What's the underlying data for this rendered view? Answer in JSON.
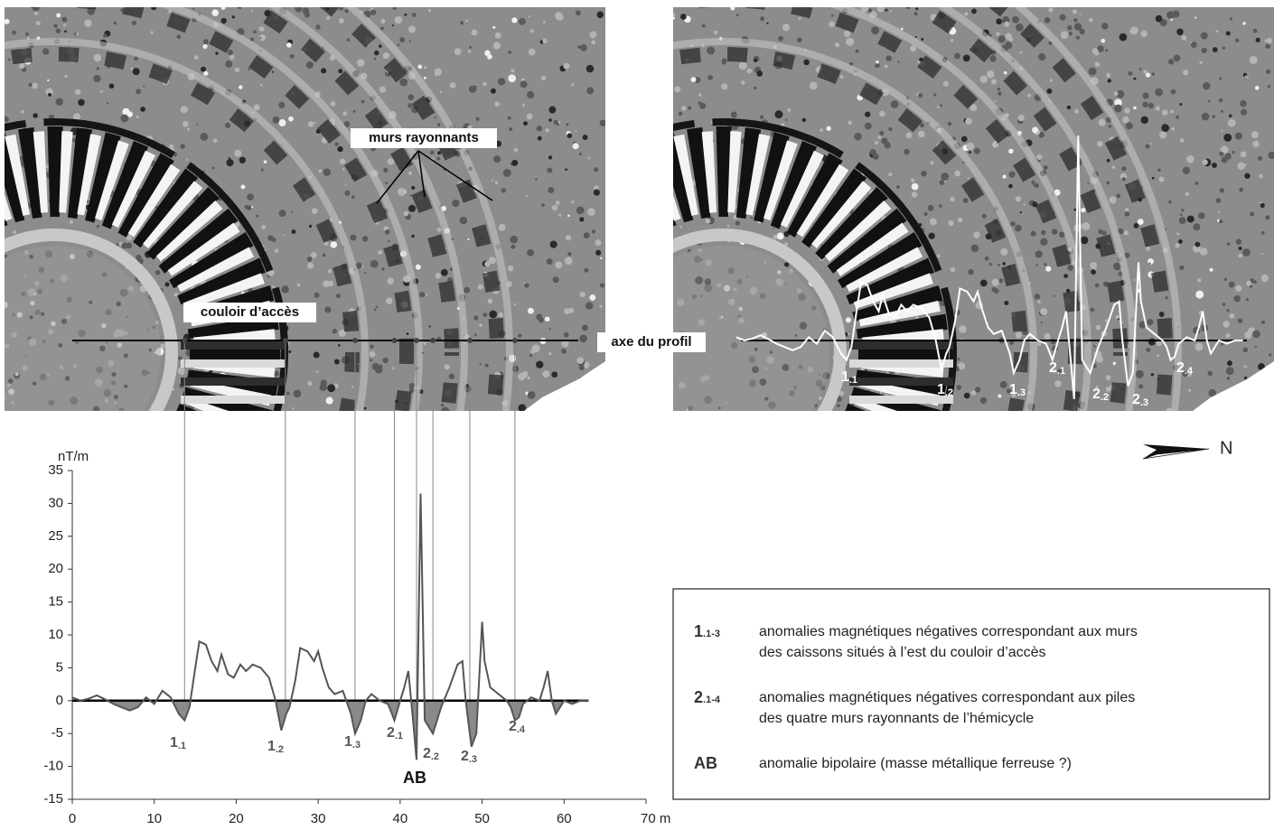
{
  "chart_data": {
    "type": "line",
    "y_unit": "nT/m",
    "xlim": [
      0,
      70
    ],
    "xticks": [
      0,
      10,
      20,
      30,
      40,
      50,
      60,
      {
        "value": 70,
        "label": "70 m"
      }
    ],
    "ylim": [
      -15,
      35
    ],
    "yticks": [
      -15,
      -10,
      -5,
      0,
      5,
      10,
      15,
      20,
      25,
      30,
      35
    ],
    "x": [
      0,
      1,
      2,
      3,
      4,
      5,
      6,
      7,
      8,
      9,
      10,
      11,
      12,
      13,
      13.7,
      14.3,
      15,
      15.5,
      16.3,
      17,
      17.7,
      18.2,
      19,
      19.7,
      20.5,
      21.2,
      22,
      23,
      24,
      24.8,
      25.5,
      26.1,
      26.5,
      27.2,
      27.8,
      28.7,
      29.5,
      30,
      30.5,
      31.3,
      32,
      33,
      34,
      34.5,
      35.2,
      35.8,
      36.5,
      37.5,
      38.5,
      39,
      39.3,
      40,
      40.5,
      41,
      41.5,
      42,
      42.5,
      43,
      43.5,
      44,
      44.5,
      45,
      46,
      47,
      47.6,
      48,
      48.7,
      49.3,
      50,
      50.3,
      51,
      52,
      53,
      53.5,
      54,
      54.5,
      55,
      56,
      57,
      57.5,
      58,
      58.5,
      59,
      59.5,
      60,
      61,
      62,
      63
    ],
    "series": [
      {
        "color": "#555555",
        "values": [
          0.5,
          0,
          0.3,
          0.8,
          0.2,
          -0.5,
          -1,
          -1.5,
          -1,
          0.5,
          -0.5,
          1.5,
          0.5,
          -2,
          -3,
          -1,
          5,
          9,
          8.5,
          6,
          4.5,
          7,
          4,
          3.5,
          5.5,
          4.5,
          5.5,
          5,
          3.5,
          0,
          -4.5,
          -2,
          -1,
          3,
          8,
          7.5,
          6,
          7.5,
          5,
          2,
          1,
          1.5,
          -2,
          -5,
          -3,
          0,
          1,
          0,
          -0.5,
          -2,
          -3,
          0,
          2,
          4.5,
          -2,
          -9,
          31.5,
          -3,
          -4,
          -5,
          -3,
          -1,
          2,
          5.5,
          6,
          0,
          -7,
          -5,
          12,
          6,
          2,
          1,
          0,
          -1,
          -3,
          -2.5,
          -0.5,
          0.5,
          0,
          2,
          4.5,
          0,
          -2,
          -1,
          0,
          -0.5,
          0,
          0
        ]
      }
    ],
    "anomaly_labels": [
      {
        "main": "1",
        "sub": ".1"
      },
      {
        "main": "1",
        "sub": ".2"
      },
      {
        "main": "1",
        "sub": ".3"
      },
      {
        "main": "2",
        "sub": ".1"
      },
      {
        "main": "2",
        "sub": ".2"
      },
      {
        "main": "2",
        "sub": ".3"
      },
      {
        "main": "2",
        "sub": ".4"
      }
    ],
    "bipolar_label": "AB"
  },
  "images": {
    "labels": [
      "murs rayonnants",
      "couloir d’accès",
      "axe du profil"
    ],
    "north": "N"
  },
  "legend": {
    "items": [
      {
        "key": "1",
        "key_sub": ".1-3",
        "lines": [
          "anomalies magnétiques négatives correspondant aux murs",
          "des caissons situés à l’est du couloir d’accès"
        ]
      },
      {
        "key": "2",
        "key_sub": ".1-4",
        "lines": [
          "anomalies magnétiques négatives correspondant aux piles",
          "des quatre murs rayonnants de l’hémicycle"
        ]
      },
      {
        "key": "AB",
        "lines": [
          "anomalie bipolaire (masse métallique ferreuse ?)"
        ]
      }
    ]
  }
}
